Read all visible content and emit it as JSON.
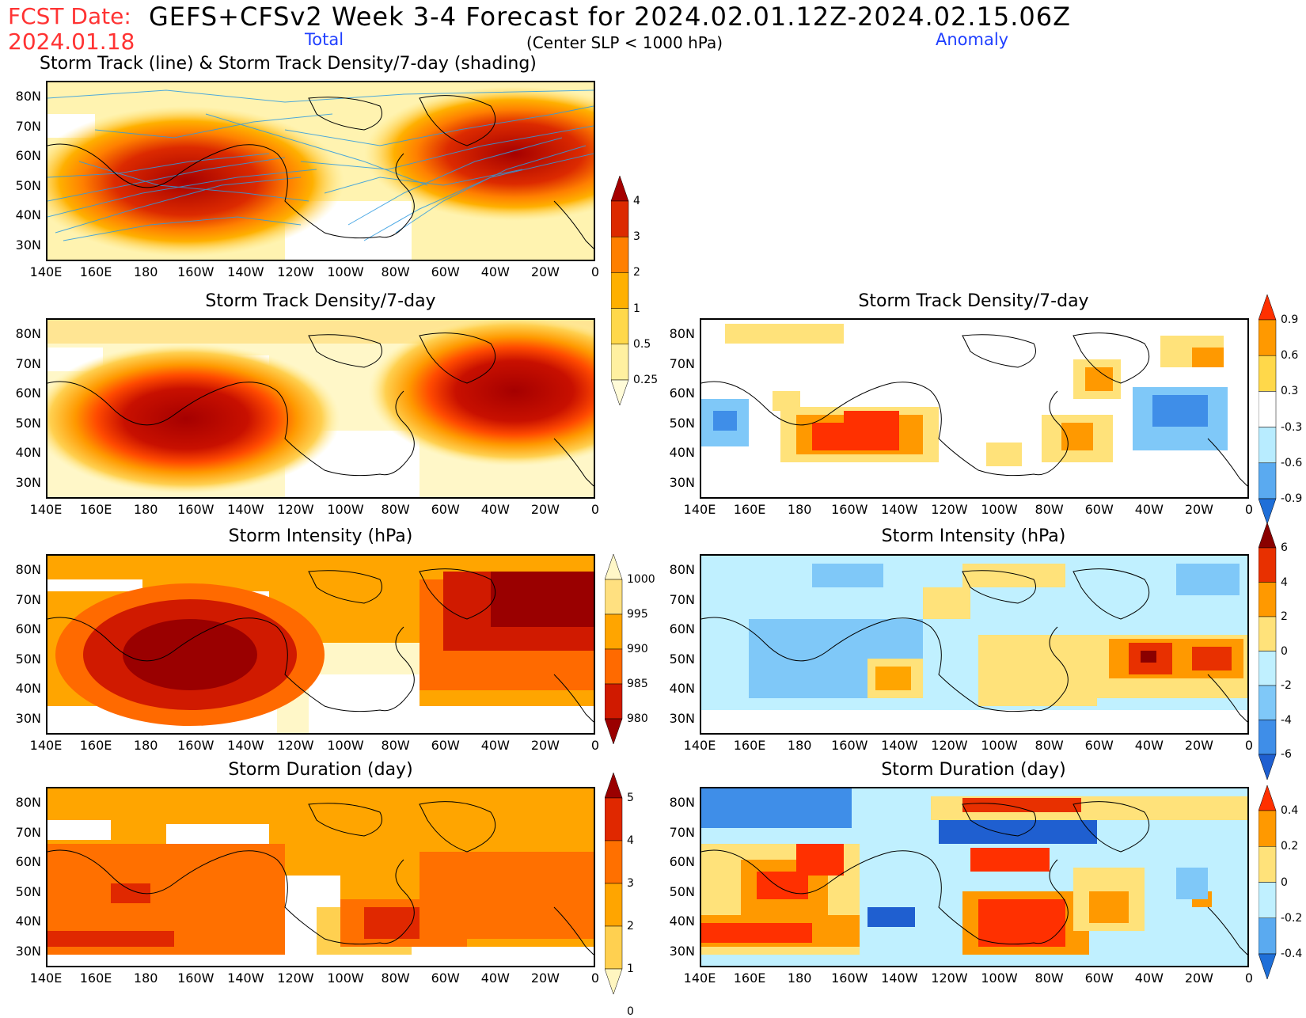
{
  "header": {
    "fcst_label": "FCST Date:",
    "fcst_date": "2024.01.18",
    "title": "GEFS+CFSv2 Week 3-4 Forecast for 2024.02.01.12Z-2024.02.15.06Z",
    "total_label": "Total",
    "criteria": "(Center SLP < 1000 hPa)",
    "anomaly_label": "Anomaly"
  },
  "panel_titles": {
    "track": "Storm Track (line) & Storm Track Density/7-day (shading)",
    "density_total": "Storm Track Density/7-day",
    "density_anom": "Storm Track Density/7-day",
    "intensity_total": "Storm Intensity (hPa)",
    "intensity_anom": "Storm Intensity (hPa)",
    "duration_total": "Storm Duration (day)",
    "duration_anom": "Storm Duration (day)"
  },
  "axes": {
    "lat_labels": [
      "80N",
      "70N",
      "60N",
      "50N",
      "40N",
      "30N"
    ],
    "lon_labels": [
      "140E",
      "160E",
      "180",
      "160W",
      "140W",
      "120W",
      "100W",
      "80W",
      "60W",
      "40W",
      "20W",
      "0"
    ]
  },
  "colorbars": {
    "density_total": {
      "labels": [
        "4",
        "3",
        "2",
        "1",
        "0.5",
        "0.25"
      ],
      "colors": [
        "#a50000",
        "#dc2a00",
        "#ff7f00",
        "#ffb000",
        "#ffd84a",
        "#fff0a0",
        "#fffbd8"
      ]
    },
    "density_anom": {
      "labels": [
        "0.9",
        "0.6",
        "0.3",
        "-0.3",
        "-0.6",
        "-0.9"
      ],
      "colors": [
        "#ff3000",
        "#ff9900",
        "#ffd84a",
        "#ffffff",
        "#b8ecff",
        "#5aaaf0",
        "#1f6fd8"
      ]
    },
    "intensity_total": {
      "labels": [
        "1000",
        "995",
        "990",
        "985",
        "980"
      ],
      "colors": [
        "#fff7c8",
        "#ffe080",
        "#ffa500",
        "#ff6a00",
        "#d01a00",
        "#9a0000"
      ]
    },
    "intensity_anom": {
      "labels": [
        "6",
        "4",
        "2",
        "0",
        "-2",
        "-4",
        "-6"
      ],
      "colors": [
        "#8a0000",
        "#e83000",
        "#ff9900",
        "#ffe27a",
        "#c0f0ff",
        "#7fc8f8",
        "#3f8ee8",
        "#1f5fd0"
      ]
    },
    "duration_total": {
      "labels": [
        "5",
        "4",
        "3",
        "2",
        "1",
        "0"
      ],
      "colors": [
        "#9a0000",
        "#e02800",
        "#ff7000",
        "#ffa500",
        "#ffd050",
        "#fff6c0"
      ]
    },
    "duration_anom": {
      "labels": [
        "0.4",
        "0.2",
        "0",
        "-0.2",
        "-0.4"
      ],
      "colors": [
        "#ff3000",
        "#ff9900",
        "#ffe27a",
        "#c0f0ff",
        "#5aaaf0",
        "#1f6fd8"
      ]
    }
  }
}
